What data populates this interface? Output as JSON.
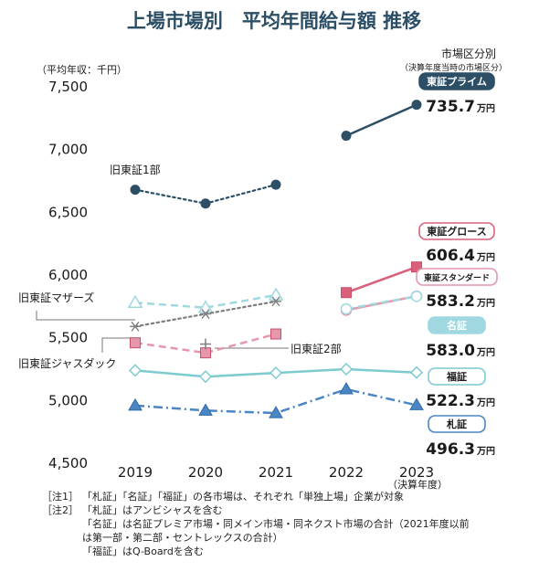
{
  "chart_data": {
    "type": "line",
    "title": "上場市場別　平均年間給与額 推移",
    "ylabel": "（平均年収：千円）",
    "categories": [
      "2019",
      "2020",
      "2021",
      "2022",
      "2023"
    ],
    "x_sub_label": "（決算年度）",
    "yticks": [
      "7,500",
      "7,000",
      "6,500",
      "6,000",
      "5,500",
      "5,000",
      "4,500"
    ],
    "ylim": [
      4500,
      7500
    ],
    "grid": false,
    "legend_title": "市場区分別",
    "legend_subtitle": "（決算年度当時の市場区分）",
    "series": [
      {
        "name": "旧東証1部",
        "color": "#2c4f66",
        "dash": "dotted",
        "marker": "circle",
        "values": [
          6680,
          6570,
          6720,
          null,
          null
        ]
      },
      {
        "name": "東証プライム",
        "color": "#2c4f66",
        "dash": "solid",
        "marker": "circle",
        "values": [
          null,
          null,
          null,
          7110,
          7357
        ]
      },
      {
        "name": "旧東証マザーズ",
        "color": "#9fd8e0",
        "dash": "dashed",
        "marker": "triangle-open",
        "values": [
          5780,
          5740,
          5840,
          null,
          null
        ]
      },
      {
        "name": "旧東証ジャスダック",
        "color": "#7f7f7f",
        "dash": "dotted",
        "marker": "asterisk",
        "values": [
          5590,
          5690,
          5790,
          null,
          null
        ]
      },
      {
        "name": "旧東証2部",
        "color": "#e597ab",
        "dash": "dashed",
        "marker": "square",
        "values": [
          5460,
          5380,
          5530,
          null,
          null
        ]
      },
      {
        "name": "東証グロース",
        "color": "#d9607b",
        "dash": "solid",
        "marker": "square",
        "values": [
          null,
          null,
          null,
          5860,
          6064
        ]
      },
      {
        "name": "東証スタンダード",
        "color": "#e597ab",
        "dash": "solid",
        "marker": "circle-open",
        "values": [
          null,
          null,
          null,
          5720,
          5832
        ]
      },
      {
        "name": "名証",
        "color": "#9fd8e0",
        "dash": "dashed",
        "marker": "circle-open",
        "values": [
          null,
          null,
          null,
          5730,
          5830
        ]
      },
      {
        "name": "旧東証2部 (名証)",
        "color": "#7f7f7f",
        "dash": "solid",
        "marker": "cross",
        "values": [
          null,
          5450,
          null,
          null,
          null
        ]
      },
      {
        "name": "福証",
        "color": "#7ccbcf",
        "dash": "solid",
        "marker": "diamond-open",
        "values": [
          5240,
          5190,
          5220,
          5250,
          5223
        ]
      },
      {
        "name": "札証",
        "color": "#4a86c4",
        "dash": "dashdot",
        "marker": "triangle",
        "values": [
          4960,
          4920,
          4900,
          5090,
          4963
        ]
      }
    ],
    "legend": [
      {
        "label": "東証プライム",
        "value": "735.7",
        "unit": "万円",
        "style": "filled",
        "border": "#2c4f66",
        "bg": "#2c4f66",
        "fg": "#ffffff"
      },
      {
        "label": "東証グロース",
        "value": "606.4",
        "unit": "万円",
        "style": "outline",
        "border": "#d9607b",
        "bg": "#ffffff",
        "fg": "#1a1a1a"
      },
      {
        "label": "東証スタンダード",
        "value": "583.2",
        "unit": "万円",
        "style": "outline",
        "border": "#e597ab",
        "bg": "#ffffff",
        "fg": "#1a1a1a"
      },
      {
        "label": "名証",
        "value": "583.0",
        "unit": "万円",
        "style": "filled",
        "border": "#9fd8e0",
        "bg": "#9fd8e0",
        "fg": "#ffffff"
      },
      {
        "label": "福証",
        "value": "522.3",
        "unit": "万円",
        "style": "outline",
        "border": "#7ccbcf",
        "bg": "#ffffff",
        "fg": "#1a1a1a"
      },
      {
        "label": "札証",
        "value": "496.3",
        "unit": "万円",
        "style": "outline",
        "border": "#4a86c4",
        "bg": "#ffffff",
        "fg": "#1a1a1a"
      }
    ],
    "annotations": [
      "旧東証1部",
      "旧東証マザーズ",
      "旧東証2部",
      "旧東証ジャスダック"
    ]
  },
  "notes": [
    {
      "tag": "［注1］",
      "lines": [
        "「札証」「名証」「福証」の各市場は、それぞれ「単独上場」企業が対象"
      ]
    },
    {
      "tag": "［注2］",
      "lines": [
        "「札証」はアンビシャスを含む",
        "「名証」は名証プレミア市場・同メイン市場・同ネクスト市場の合計（2021年度以前",
        "は第一部・第二部・セントレックスの合計）",
        "「福証」はQ-Boardを含む"
      ]
    }
  ]
}
